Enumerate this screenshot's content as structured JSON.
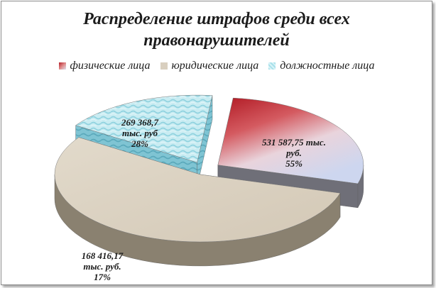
{
  "chart_data": {
    "type": "pie",
    "title_lines": [
      "Распределение штрафов среди всех",
      "правонарушителей"
    ],
    "legend_position": "top",
    "categories": [
      "физические лица",
      "юридические лица",
      "должностные лица"
    ],
    "values": [
      269368.7,
      531587.75,
      168416.17
    ],
    "percents": [
      28,
      55,
      17
    ],
    "data_labels": [
      [
        "269 368,7",
        "тыс. руб",
        "28%"
      ],
      [
        "531 587,75 тыс.",
        "руб.",
        "55%"
      ],
      [
        "168 416,17",
        "тыс. руб.",
        "17%"
      ]
    ],
    "colors": [
      "#b3202a",
      "#d9cfbf",
      "#a8e0ea"
    ]
  }
}
